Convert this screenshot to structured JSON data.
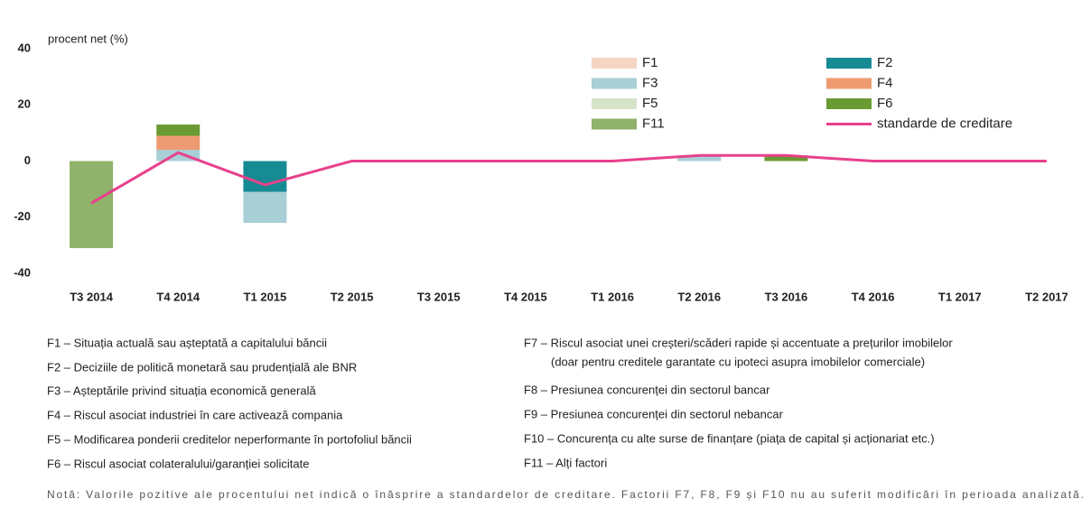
{
  "chart_data": {
    "type": "bar",
    "stacked": true,
    "y_axis_label": "procent net (%)",
    "categories": [
      "T3 2014",
      "T4 2014",
      "T1 2015",
      "T2 2015",
      "T3 2015",
      "T4 2015",
      "T1 2016",
      "T2 2016",
      "T3 2016",
      "T4 2016",
      "T1 2017",
      "T2 2017"
    ],
    "series": [
      {
        "name": "F1",
        "color": "#f6d5c4",
        "values": [
          0,
          0,
          0,
          0,
          0,
          0,
          0,
          0,
          0,
          0,
          0,
          0
        ]
      },
      {
        "name": "F2",
        "color": "#168b93",
        "values": [
          0,
          0,
          -11,
          0,
          0,
          0,
          0,
          0,
          0,
          0,
          0,
          0
        ]
      },
      {
        "name": "F3",
        "color": "#a8cfd6",
        "values": [
          0,
          4,
          -11,
          0,
          0,
          0,
          0,
          2,
          0,
          0,
          0,
          0
        ]
      },
      {
        "name": "F4",
        "color": "#ee9b72",
        "values": [
          0,
          5,
          0,
          0,
          0,
          0,
          0,
          0,
          0,
          0,
          0,
          0
        ]
      },
      {
        "name": "F5",
        "color": "#d6e3c9",
        "values": [
          0,
          0,
          0,
          0,
          0,
          0,
          0,
          0,
          0,
          0,
          0,
          0
        ]
      },
      {
        "name": "F6",
        "color": "#6a9a32",
        "values": [
          0,
          4,
          0,
          0,
          0,
          0,
          0,
          0,
          2,
          0,
          0,
          0
        ]
      },
      {
        "name": "F11",
        "color": "#90b26a",
        "values": [
          -31,
          0,
          0,
          0,
          0,
          0,
          0,
          0,
          0,
          0,
          0,
          0
        ]
      },
      {
        "name": "standarde de creditare",
        "type": "line",
        "color": "#e8418c",
        "values": [
          -15,
          3,
          -8.5,
          0,
          0,
          0,
          0,
          2,
          2,
          0,
          0,
          0
        ]
      }
    ],
    "ylim": [
      -40,
      40
    ],
    "yticks": [
      -40,
      -20,
      0,
      20,
      40
    ],
    "grid": false
  },
  "definitions_left": [
    "F1 – Situația actuală sau așteptată a capitalului băncii",
    "F2 – Deciziile de politică monetară sau prudențială ale BNR",
    "F3 – Așteptările privind situația economică generală",
    "F4 – Riscul asociat industriei în care activează compania",
    "F5 – Modificarea ponderii creditelor neperformante în portofoliul băncii",
    "F6 – Riscul asociat colateralului/garanției solicitate"
  ],
  "definitions_right": [
    "F7 – Riscul asociat unei creșteri/scăderi rapide și accentuate a prețurilor imobilelor",
    "(doar pentru creditele garantate cu ipoteci asupra imobilelor comerciale)",
    "F8 – Presiunea concurenței din sectorul bancar",
    "F9 – Presiunea concurenței din sectorul nebancar",
    "F10 – Concurența cu alte surse de finanțare (piața de capital și acționariat etc.)",
    "F11 – Alți factori"
  ],
  "note": "Notă: Valorile pozitive ale procentului net indică o înăsprire a standardelor de creditare. Factorii F7, F8, F9 și F10 nu au suferit modificări în perioada analizată."
}
